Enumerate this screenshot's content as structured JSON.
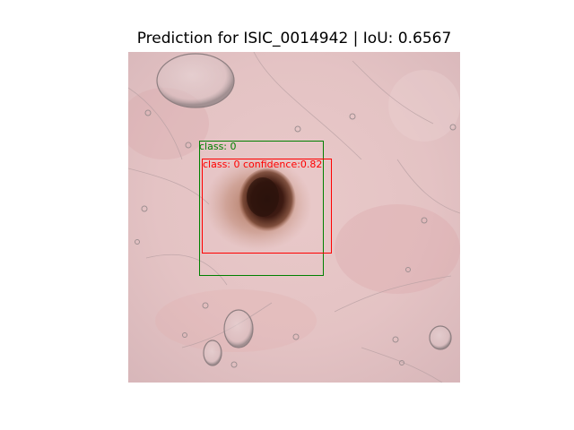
{
  "figure": {
    "title": "Prediction for ISIC_0014942 | IoU: 0.6567"
  },
  "ground_truth_box": {
    "label": "class: 0",
    "color": "#008000"
  },
  "prediction_box": {
    "label": "class: 0 confidence:0.82",
    "color": "#ff0000"
  }
}
